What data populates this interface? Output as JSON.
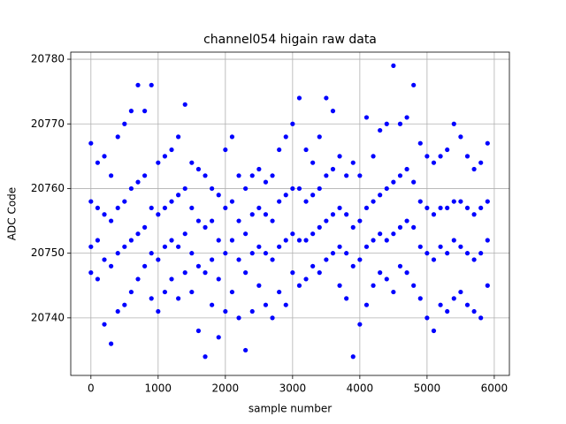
{
  "chart_data": {
    "type": "scatter",
    "title": "channel054 higain raw data",
    "xlabel": "sample number",
    "ylabel": "ADC Code",
    "color": "#0000ff",
    "grid": true,
    "xlim": [
      -300,
      6225
    ],
    "ylim": [
      20731.1,
      20781.1
    ],
    "xticks": [
      0,
      1000,
      2000,
      3000,
      4000,
      5000,
      6000
    ],
    "yticks": [
      20740,
      20750,
      20760,
      20770,
      20780
    ],
    "x": [
      0,
      0,
      0,
      0,
      100,
      100,
      100,
      100,
      200,
      200,
      200,
      200,
      300,
      300,
      300,
      300,
      400,
      400,
      400,
      400,
      500,
      500,
      500,
      500,
      600,
      600,
      600,
      600,
      700,
      700,
      700,
      700,
      800,
      800,
      800,
      800,
      900,
      900,
      900,
      900,
      1000,
      1000,
      1000,
      1000,
      1100,
      1100,
      1100,
      1100,
      1200,
      1200,
      1200,
      1200,
      1300,
      1300,
      1300,
      1300,
      1400,
      1400,
      1400,
      1400,
      1500,
      1500,
      1500,
      1500,
      1600,
      1600,
      1600,
      1600,
      1700,
      1700,
      1700,
      1700,
      1800,
      1800,
      1800,
      1800,
      1900,
      1900,
      1900,
      1900,
      2000,
      2000,
      2000,
      2000,
      2100,
      2100,
      2100,
      2100,
      2200,
      2200,
      2200,
      2200,
      2300,
      2300,
      2300,
      2300,
      2400,
      2400,
      2400,
      2400,
      2500,
      2500,
      2500,
      2500,
      2600,
      2600,
      2600,
      2600,
      2700,
      2700,
      2700,
      2700,
      2800,
      2800,
      2800,
      2800,
      2900,
      2900,
      2900,
      2900,
      3000,
      3000,
      3000,
      3000,
      3100,
      3100,
      3100,
      3100,
      3200,
      3200,
      3200,
      3200,
      3300,
      3300,
      3300,
      3300,
      3400,
      3400,
      3400,
      3400,
      3500,
      3500,
      3500,
      3500,
      3600,
      3600,
      3600,
      3600,
      3700,
      3700,
      3700,
      3700,
      3800,
      3800,
      3800,
      3800,
      3900,
      3900,
      3900,
      3900,
      4000,
      4000,
      4000,
      4000,
      4100,
      4100,
      4100,
      4100,
      4200,
      4200,
      4200,
      4200,
      4300,
      4300,
      4300,
      4300,
      4400,
      4400,
      4400,
      4400,
      4500,
      4500,
      4500,
      4500,
      4600,
      4600,
      4600,
      4600,
      4700,
      4700,
      4700,
      4700,
      4800,
      4800,
      4800,
      4800,
      4900,
      4900,
      4900,
      4900,
      5000,
      5000,
      5000,
      5000,
      5100,
      5100,
      5100,
      5100,
      5200,
      5200,
      5200,
      5200,
      5300,
      5300,
      5300,
      5300,
      5400,
      5400,
      5400,
      5400,
      5500,
      5500,
      5500,
      5500,
      5600,
      5600,
      5600,
      5600,
      5700,
      5700,
      5700,
      5700,
      5800,
      5800,
      5800,
      5800,
      5900,
      5900,
      5900,
      5900
    ],
    "values": [
      20747,
      20751,
      20758,
      20767,
      20746,
      20752,
      20757,
      20764,
      20739,
      20749,
      20756,
      20765,
      20736,
      20748,
      20755,
      20762,
      20741,
      20750,
      20757,
      20768,
      20742,
      20751,
      20758,
      20770,
      20744,
      20752,
      20760,
      20772,
      20746,
      20753,
      20761,
      20776,
      20748,
      20754,
      20762,
      20772,
      20743,
      20750,
      20757,
      20776,
      20741,
      20749,
      20756,
      20764,
      20744,
      20751,
      20757,
      20765,
      20746,
      20752,
      20758,
      20766,
      20743,
      20751,
      20759,
      20768,
      20747,
      20753,
      20760,
      20773,
      20744,
      20750,
      20757,
      20764,
      20738,
      20748,
      20755,
      20763,
      20734,
      20747,
      20754,
      20762,
      20742,
      20749,
      20755,
      20760,
      20737,
      20746,
      20752,
      20759,
      20741,
      20750,
      20757,
      20766,
      20744,
      20752,
      20758,
      20768,
      20740,
      20749,
      20755,
      20762,
      20735,
      20747,
      20753,
      20760,
      20741,
      20750,
      20756,
      20762,
      20745,
      20751,
      20757,
      20763,
      20742,
      20750,
      20756,
      20761,
      20740,
      20749,
      20755,
      20762,
      20744,
      20751,
      20758,
      20766,
      20742,
      20752,
      20759,
      20768,
      20747,
      20753,
      20760,
      20770,
      20745,
      20752,
      20760,
      20774,
      20746,
      20752,
      20758,
      20766,
      20748,
      20753,
      20759,
      20764,
      20747,
      20754,
      20760,
      20768,
      20749,
      20755,
      20762,
      20774,
      20750,
      20756,
      20763,
      20772,
      20745,
      20751,
      20757,
      20765,
      20743,
      20750,
      20756,
      20762,
      20734,
      20748,
      20754,
      20764,
      20739,
      20749,
      20755,
      20762,
      20742,
      20751,
      20757,
      20771,
      20745,
      20752,
      20758,
      20765,
      20747,
      20753,
      20759,
      20769,
      20746,
      20752,
      20760,
      20770,
      20744,
      20753,
      20761,
      20779,
      20748,
      20754,
      20762,
      20770,
      20747,
      20755,
      20763,
      20771,
      20745,
      20754,
      20761,
      20776,
      20743,
      20751,
      20758,
      20767,
      20740,
      20750,
      20757,
      20765,
      20738,
      20749,
      20756,
      20764,
      20742,
      20751,
      20757,
      20765,
      20741,
      20750,
      20757,
      20766,
      20743,
      20752,
      20758,
      20770,
      20744,
      20751,
      20758,
      20768,
      20742,
      20750,
      20757,
      20765,
      20741,
      20749,
      20756,
      20763,
      20740,
      20750,
      20757,
      20764,
      20745,
      20752,
      20758,
      20767
    ]
  }
}
